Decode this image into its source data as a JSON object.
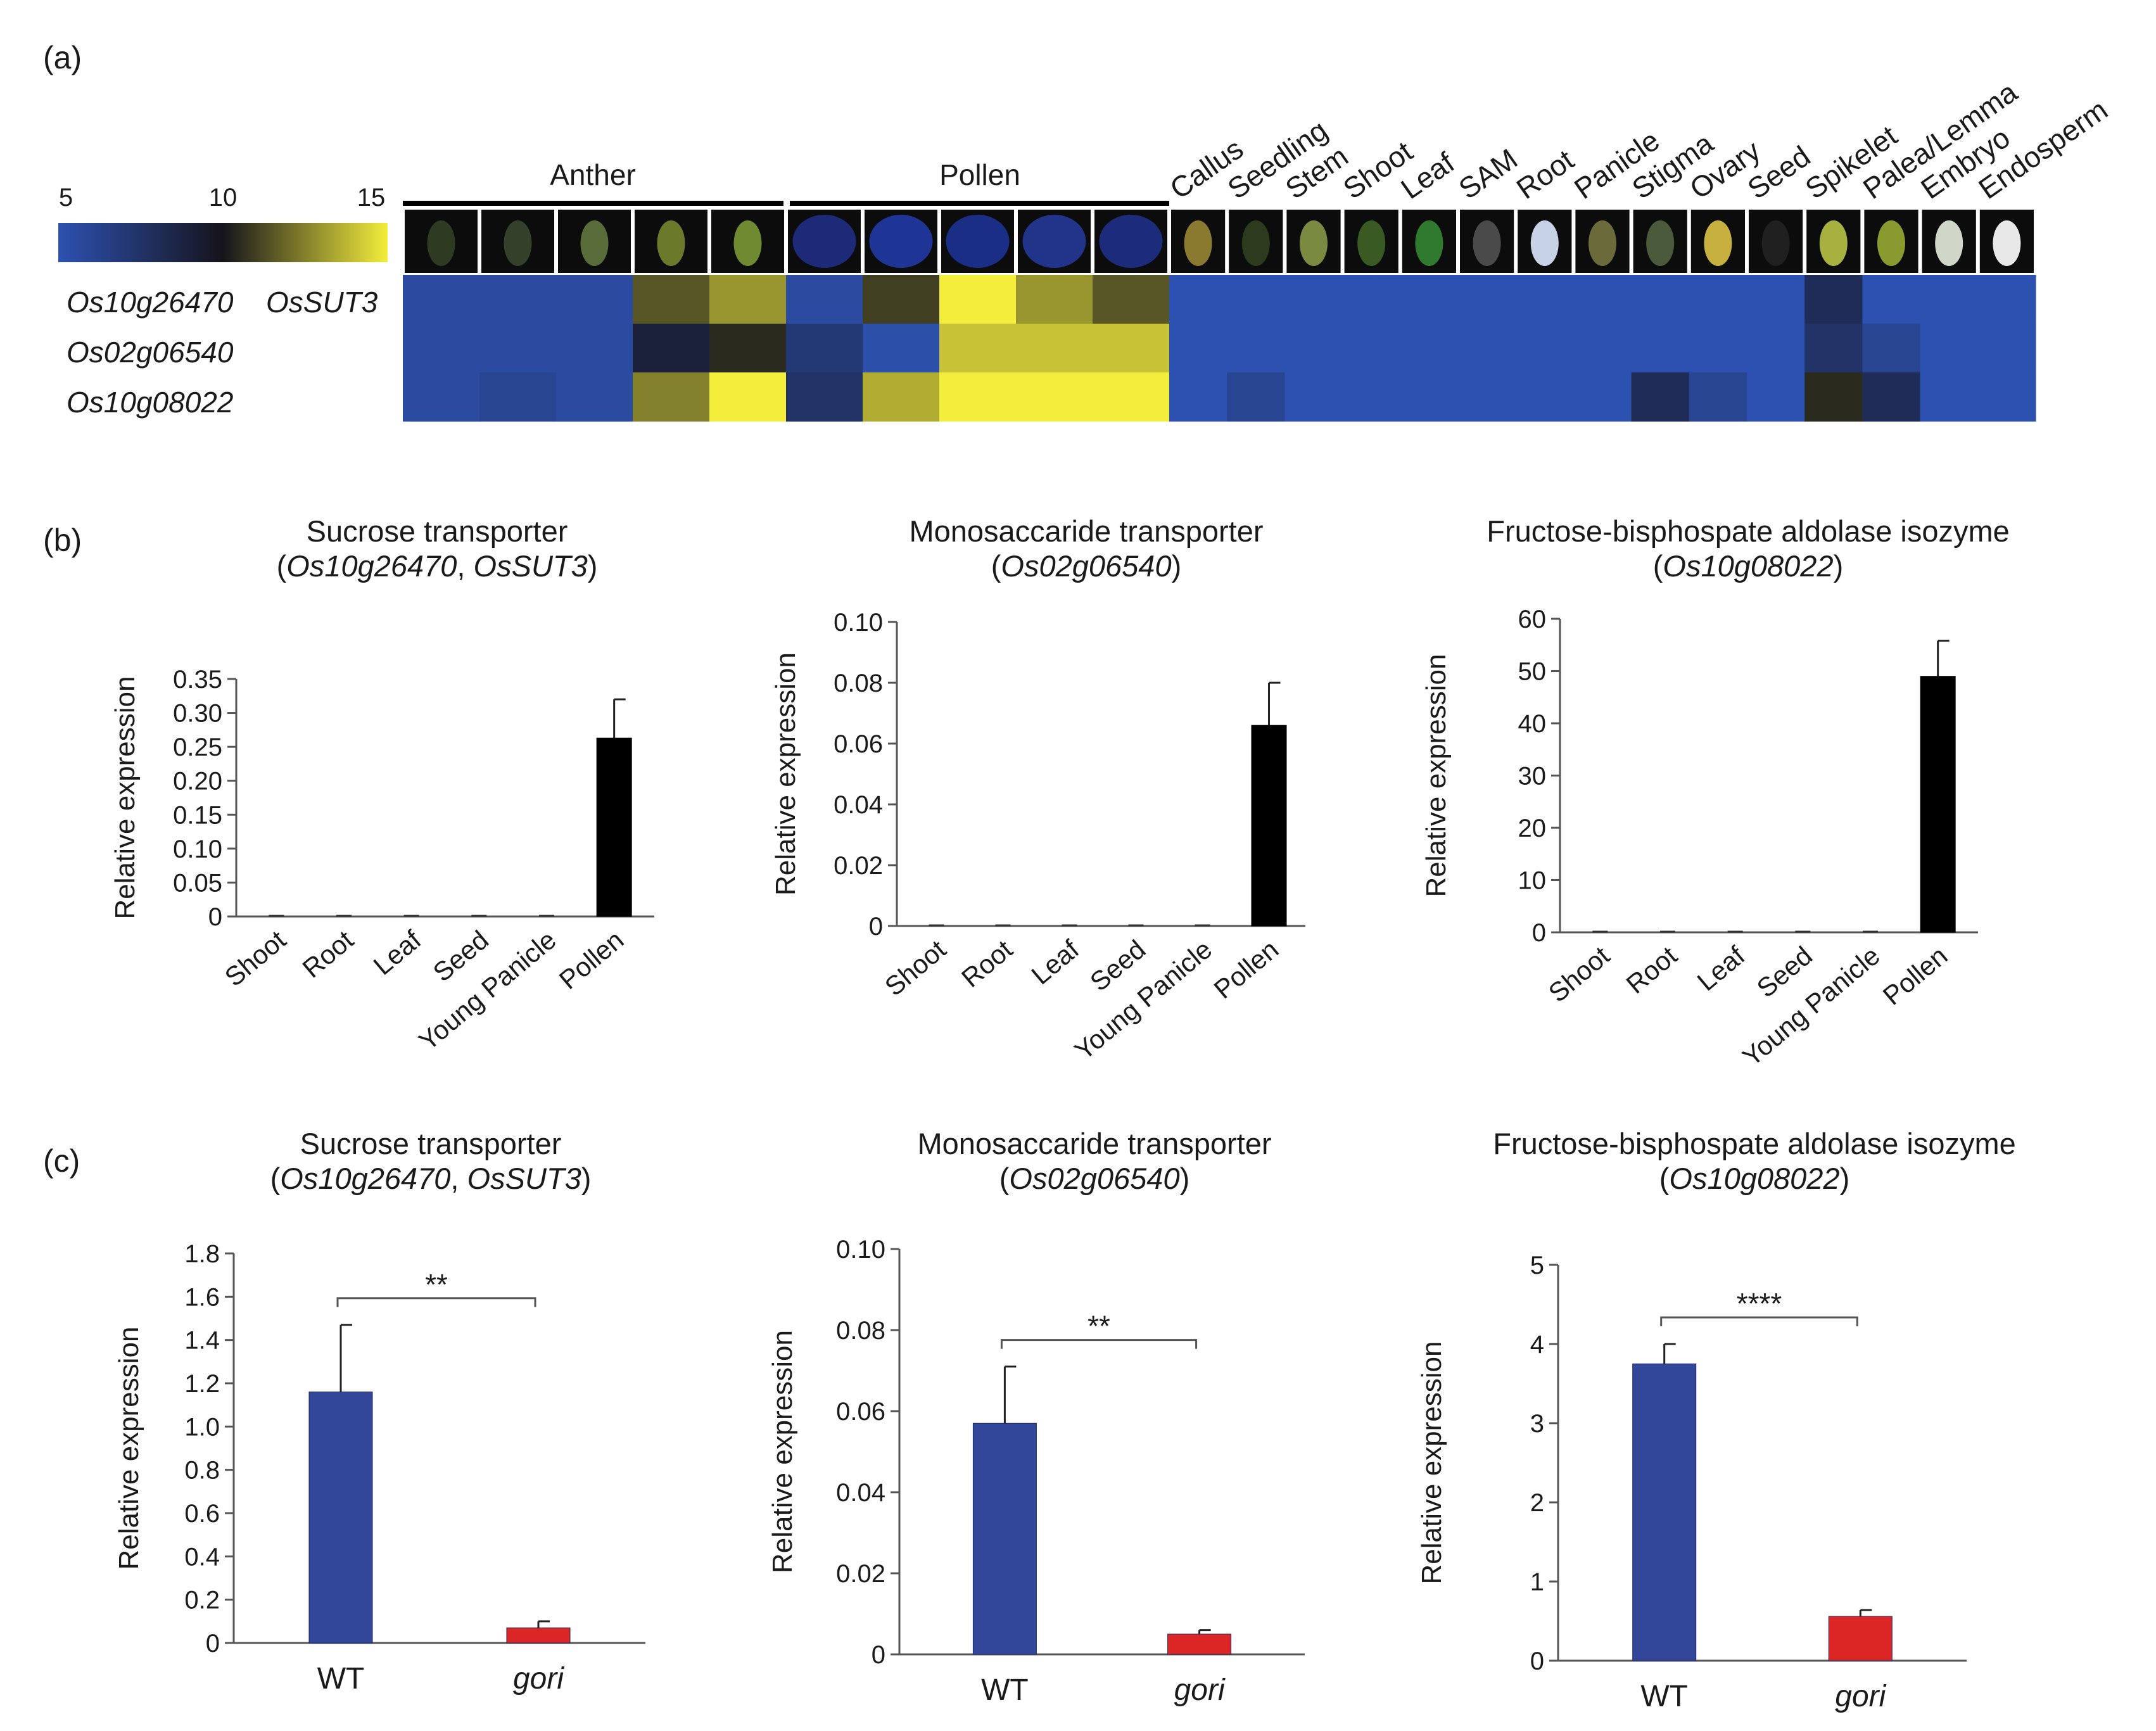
{
  "panel_labels": {
    "a": "(a)",
    "b": "(b)",
    "c": "(c)"
  },
  "colors": {
    "low": "#2d51b0",
    "mid": "#15141c",
    "high": "#f3ed3c",
    "bar_black": "#000000",
    "bar_blue": "#33479a",
    "bar_red": "#dc2626",
    "axis": "#555555"
  },
  "heatmap": {
    "scale": {
      "min": 5,
      "mid": 10,
      "max": 15,
      "labels": [
        "5",
        "10",
        "15"
      ]
    },
    "group_labels": [
      "Anther",
      "Pollen"
    ],
    "tissue_labels": [
      "Callus",
      "Seedling",
      "Stem",
      "Shoot",
      "Leaf",
      "SAM",
      "Root",
      "Panicle",
      "Stigma",
      "Ovary",
      "Seed",
      "Spikelet",
      "Palea/Lemma",
      "Embryo",
      "Endosperm"
    ],
    "row_labels": [
      {
        "gene": "Os10g26470",
        "alias": "OsSUT3"
      },
      {
        "gene": "Os02g06540",
        "alias": ""
      },
      {
        "gene": "Os10g08022",
        "alias": ""
      }
    ]
  },
  "chart_data": [
    {
      "type": "heatmap",
      "columns": [
        "Anther-1",
        "Anther-2",
        "Anther-3",
        "Anther-4",
        "Anther-5",
        "Pollen-1",
        "Pollen-2",
        "Pollen-3",
        "Pollen-4",
        "Pollen-5",
        "Callus",
        "Seedling",
        "Stem",
        "Shoot",
        "Leaf",
        "SAM",
        "Root",
        "Panicle",
        "Stigma",
        "Ovary",
        "Seed",
        "Spikelet",
        "Palea/Lemma",
        "Embryo",
        "Endosperm"
      ],
      "rows": [
        "Os10g26470",
        "Os02g06540",
        "Os10g08022"
      ],
      "values": [
        [
          5.5,
          5.5,
          5.5,
          11.5,
          13,
          5.5,
          11,
          15,
          13,
          11.5,
          5,
          5,
          5,
          5,
          5,
          5,
          5,
          5,
          5,
          5,
          5,
          8,
          5,
          5,
          5
        ],
        [
          5.5,
          5.5,
          5.5,
          9,
          10.5,
          7,
          5.2,
          14,
          14,
          14,
          5,
          5,
          5,
          5,
          5,
          5,
          5,
          5,
          5,
          5,
          5,
          7.5,
          6,
          5,
          5
        ],
        [
          5.5,
          6,
          5.5,
          12.5,
          15,
          7.5,
          13.5,
          15,
          15,
          15,
          5,
          6,
          5,
          5,
          5,
          5,
          5,
          5,
          8,
          6,
          5,
          10.5,
          8,
          5,
          5
        ]
      ],
      "scale": [
        5,
        15
      ]
    },
    {
      "type": "bar",
      "title": "Sucrose transporter",
      "subtitle": {
        "pre": "(",
        "gene": "Os10g26470",
        "sep": ", ",
        "alias": "OsSUT3",
        "post": ")"
      },
      "ylabel": "Relative expression",
      "categories": [
        "Shoot",
        "Root",
        "Leaf",
        "Seed",
        "Young Panicle",
        "Pollen"
      ],
      "values": [
        0,
        0,
        0,
        0,
        0,
        0.263
      ],
      "errors": [
        0,
        0,
        0,
        0,
        0,
        0.057
      ],
      "ylim": [
        0,
        0.35
      ],
      "yticks": [
        "0",
        "0.05",
        "0.10",
        "0.15",
        "0.20",
        "0.25",
        "0.30",
        "0.35"
      ]
    },
    {
      "type": "bar",
      "title": "Monosaccaride transporter",
      "subtitle": {
        "pre": "(",
        "gene": "Os02g06540",
        "sep": "",
        "alias": "",
        "post": ")"
      },
      "ylabel": "Relative expression",
      "categories": [
        "Shoot",
        "Root",
        "Leaf",
        "Seed",
        "Young Panicle",
        "Pollen"
      ],
      "values": [
        0,
        0,
        0,
        0,
        0,
        0.066
      ],
      "errors": [
        0,
        0,
        0,
        0,
        0,
        0.014
      ],
      "ylim": [
        0,
        0.1
      ],
      "yticks": [
        "0",
        "0.02",
        "0.04",
        "0.06",
        "0.08",
        "0.10"
      ]
    },
    {
      "type": "bar",
      "title": "Fructose-bisphospate aldolase isozyme",
      "subtitle": {
        "pre": "(",
        "gene": "Os10g08022",
        "sep": "",
        "alias": "",
        "post": ")"
      },
      "ylabel": "Relative expression",
      "categories": [
        "Shoot",
        "Root",
        "Leaf",
        "Seed",
        "Young Panicle",
        "Pollen"
      ],
      "values": [
        0,
        0,
        0,
        0,
        0,
        49
      ],
      "errors": [
        0,
        0,
        0,
        0,
        0,
        6.8
      ],
      "ylim": [
        0,
        60
      ],
      "yticks": [
        "0",
        "10",
        "20",
        "30",
        "40",
        "50",
        "60"
      ]
    },
    {
      "type": "bar",
      "title": "Sucrose transporter",
      "subtitle": {
        "pre": "(",
        "gene": "Os10g26470",
        "sep": ", ",
        "alias": "OsSUT3",
        "post": ")"
      },
      "ylabel": "Relative expression",
      "categories": [
        "WT",
        "gori"
      ],
      "values": [
        1.16,
        0.07
      ],
      "errors": [
        0.31,
        0.03
      ],
      "ylim": [
        0,
        1.8
      ],
      "yticks": [
        "0",
        "0.2",
        "0.4",
        "0.6",
        "0.8",
        "1.0",
        "1.2",
        "1.4",
        "1.6",
        "1.8"
      ],
      "significance": "**"
    },
    {
      "type": "bar",
      "title": "Monosaccaride transporter",
      "subtitle": {
        "pre": "(",
        "gene": "Os02g06540",
        "sep": "",
        "alias": "",
        "post": ")"
      },
      "ylabel": "Relative expression",
      "categories": [
        "WT",
        "gori"
      ],
      "values": [
        0.057,
        0.005
      ],
      "errors": [
        0.014,
        0.001
      ],
      "ylim": [
        0,
        0.1
      ],
      "yticks": [
        "0",
        "0.02",
        "0.04",
        "0.06",
        "0.08",
        "0.10"
      ],
      "significance": "**"
    },
    {
      "type": "bar",
      "title": "Fructose-bisphospate aldolase isozyme",
      "subtitle": {
        "pre": "(",
        "gene": "Os10g08022",
        "sep": "",
        "alias": "",
        "post": ")"
      },
      "ylabel": "Relative expression",
      "categories": [
        "WT",
        "gori"
      ],
      "values": [
        3.75,
        0.56
      ],
      "errors": [
        0.25,
        0.08
      ],
      "ylim": [
        0,
        5
      ],
      "yticks": [
        "0",
        "1",
        "2",
        "3",
        "4",
        "5"
      ],
      "significance": "****"
    }
  ]
}
